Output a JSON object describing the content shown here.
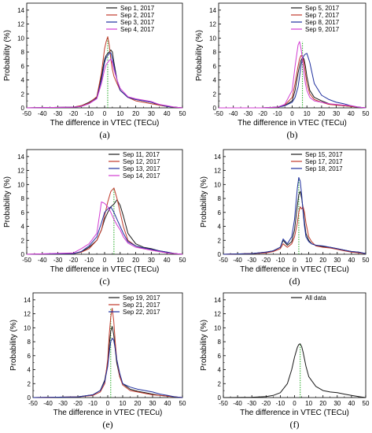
{
  "figure": {
    "colors": {
      "black": "#1a1a1a",
      "red": "#c0392b",
      "blue": "#1f2f9e",
      "magenta": "#d23cd2",
      "median_line": "#22aa22"
    }
  },
  "chart_data": [
    {
      "type": "line",
      "panel_label": "(a)",
      "xlabel": "The difference in VTEC (TECu)",
      "ylabel": "Probability (%)",
      "xlim": [
        -50,
        50
      ],
      "ylim": [
        0,
        15
      ],
      "xticks": [
        -50,
        -40,
        -30,
        -20,
        -10,
        0,
        10,
        20,
        30,
        40,
        50
      ],
      "yticks": [
        0,
        2,
        4,
        6,
        8,
        10,
        12,
        14
      ],
      "grid": false,
      "legend_position": "top-right",
      "median_line_x": 2,
      "x": [
        -50,
        -20,
        -15,
        -10,
        -5,
        -2,
        0,
        1,
        2,
        3,
        4,
        5,
        6,
        8,
        10,
        15,
        20,
        25,
        30,
        35,
        40,
        45,
        50
      ],
      "series": [
        {
          "name": "Sep 1, 2017",
          "color_key": "black",
          "values": [
            0,
            0.1,
            0.3,
            0.8,
            1.5,
            4.5,
            7.0,
            7.5,
            7.8,
            8.0,
            8.3,
            8.0,
            6.5,
            4.0,
            2.5,
            1.5,
            1.2,
            1.0,
            0.8,
            0.4,
            0.2,
            0.1,
            0
          ]
        },
        {
          "name": "Sep 2, 2017",
          "color_key": "red",
          "values": [
            0,
            0.1,
            0.3,
            0.7,
            1.6,
            5.0,
            8.5,
            9.5,
            10.2,
            9.0,
            7.0,
            5.5,
            4.5,
            3.5,
            2.5,
            1.5,
            1.0,
            0.8,
            0.6,
            0.4,
            0.2,
            0.1,
            0
          ]
        },
        {
          "name": "Sep 3, 2017",
          "color_key": "blue",
          "values": [
            0,
            0.1,
            0.2,
            0.6,
            1.4,
            4.0,
            6.5,
            7.2,
            7.5,
            7.8,
            7.9,
            7.0,
            6.0,
            4.0,
            2.5,
            1.5,
            1.2,
            1.0,
            0.8,
            0.5,
            0.2,
            0.1,
            0
          ]
        },
        {
          "name": "Sep 4, 2017",
          "color_key": "magenta",
          "values": [
            0,
            0.1,
            0.2,
            0.6,
            1.3,
            3.5,
            5.5,
            6.2,
            6.5,
            6.8,
            7.0,
            6.5,
            5.5,
            4.0,
            2.8,
            1.6,
            1.3,
            1.1,
            0.9,
            0.5,
            0.3,
            0.1,
            0
          ]
        }
      ]
    },
    {
      "type": "line",
      "panel_label": "(b)",
      "xlabel": "The difference in VTEC (TECu)",
      "ylabel": "Probability (%)",
      "xlim": [
        -50,
        50
      ],
      "ylim": [
        0,
        15
      ],
      "xticks": [
        -50,
        -40,
        -30,
        -20,
        -10,
        0,
        10,
        20,
        30,
        40,
        50
      ],
      "yticks": [
        0,
        2,
        4,
        6,
        8,
        10,
        12,
        14
      ],
      "grid": false,
      "legend_position": "top-right",
      "median_line_x": 7,
      "x": [
        -50,
        -20,
        -10,
        -5,
        0,
        2,
        4,
        5,
        6,
        7,
        8,
        9,
        10,
        12,
        15,
        20,
        25,
        30,
        35,
        40,
        45,
        50
      ],
      "series": [
        {
          "name": "Sep 5, 2017",
          "color_key": "black",
          "values": [
            0,
            0,
            0.1,
            0.3,
            1.0,
            2.5,
            5.0,
            6.0,
            6.8,
            7.2,
            7.0,
            6.0,
            4.5,
            2.5,
            1.5,
            1.0,
            0.6,
            0.4,
            0.3,
            0.2,
            0.1,
            0
          ]
        },
        {
          "name": "Sep 7, 2017",
          "color_key": "red",
          "values": [
            0,
            0,
            0.1,
            0.4,
            1.5,
            3.5,
            6.0,
            7.0,
            7.5,
            7.3,
            6.5,
            5.0,
            3.5,
            2.0,
            1.2,
            0.8,
            0.5,
            0.4,
            0.3,
            0.2,
            0.1,
            0
          ]
        },
        {
          "name": "Sep 8, 2017",
          "color_key": "blue",
          "values": [
            0,
            0,
            0.1,
            0.3,
            0.8,
            1.5,
            3.0,
            4.5,
            6.0,
            7.0,
            7.5,
            7.7,
            7.8,
            6.5,
            3.5,
            1.8,
            1.2,
            0.8,
            0.6,
            0.3,
            0.1,
            0
          ]
        },
        {
          "name": "Sep 9, 2017",
          "color_key": "magenta",
          "values": [
            0,
            0,
            0.1,
            0.5,
            2.5,
            6.0,
            9.0,
            9.5,
            8.5,
            7.0,
            5.0,
            3.5,
            2.5,
            1.5,
            1.0,
            0.8,
            0.6,
            0.5,
            0.4,
            0.3,
            0.1,
            0
          ]
        }
      ]
    },
    {
      "type": "line",
      "panel_label": "(c)",
      "xlabel": "The difference in VTEC (TECu)",
      "ylabel": "Probability (%)",
      "xlim": [
        -50,
        50
      ],
      "ylim": [
        0,
        15
      ],
      "xticks": [
        -50,
        -40,
        -30,
        -20,
        -10,
        0,
        10,
        20,
        30,
        40,
        50
      ],
      "yticks": [
        0,
        2,
        4,
        6,
        8,
        10,
        12,
        14
      ],
      "grid": false,
      "legend_position": "top-right",
      "median_line_x": 6,
      "x": [
        -50,
        -20,
        -15,
        -10,
        -5,
        -2,
        0,
        2,
        4,
        6,
        8,
        10,
        12,
        15,
        20,
        25,
        30,
        35,
        40,
        45,
        50
      ],
      "series": [
        {
          "name": "Sep 11, 2017",
          "color_key": "black",
          "values": [
            0,
            0.1,
            0.3,
            1.0,
            2.0,
            3.5,
            5.0,
            6.0,
            6.8,
            7.2,
            7.8,
            7.0,
            5.5,
            3.0,
            1.5,
            1.0,
            0.8,
            0.5,
            0.3,
            0.1,
            0
          ]
        },
        {
          "name": "Sep 12, 2017",
          "color_key": "red",
          "values": [
            0,
            0.1,
            0.3,
            0.8,
            2.0,
            3.5,
            5.5,
            7.5,
            9.0,
            9.5,
            8.0,
            6.0,
            4.0,
            2.0,
            1.2,
            0.8,
            0.6,
            0.4,
            0.2,
            0.1,
            0
          ]
        },
        {
          "name": "Sep 13, 2017",
          "color_key": "blue",
          "values": [
            0,
            0.1,
            0.4,
            1.2,
            2.5,
            4.5,
            6.0,
            6.5,
            6.8,
            6.0,
            5.0,
            4.0,
            3.0,
            1.8,
            1.2,
            0.9,
            0.7,
            0.5,
            0.3,
            0.1,
            0
          ]
        },
        {
          "name": "Sep 14, 2017",
          "color_key": "magenta",
          "values": [
            0,
            0.2,
            0.8,
            1.5,
            3.0,
            7.5,
            7.3,
            6.8,
            6.0,
            5.0,
            4.2,
            3.5,
            2.5,
            1.6,
            1.0,
            0.8,
            0.6,
            0.4,
            0.2,
            0.1,
            0
          ]
        }
      ]
    },
    {
      "type": "line",
      "panel_label": "(d)",
      "xlabel": "The difference in VTEC (TECu)",
      "ylabel": "Probability (%)",
      "xlim": [
        -50,
        50
      ],
      "ylim": [
        0,
        15
      ],
      "xticks": [
        -50,
        -40,
        -30,
        -20,
        -10,
        0,
        10,
        20,
        30,
        40,
        50
      ],
      "yticks": [
        0,
        2,
        4,
        6,
        8,
        10,
        12,
        14
      ],
      "grid": false,
      "legend_position": "top-right",
      "median_line_x": 3,
      "x": [
        -50,
        -30,
        -20,
        -15,
        -10,
        -8,
        -5,
        -2,
        0,
        2,
        3,
        4,
        5,
        6,
        7,
        8,
        10,
        12,
        15,
        20,
        25,
        30,
        35,
        40,
        45,
        50
      ],
      "series": [
        {
          "name": "Sep 15, 2017",
          "color_key": "black",
          "values": [
            0,
            0.1,
            0.3,
            0.5,
            1.0,
            2.0,
            1.3,
            1.8,
            3.5,
            7.0,
            8.5,
            9.0,
            8.0,
            6.5,
            4.5,
            3.0,
            2.0,
            1.5,
            1.3,
            1.1,
            1.0,
            0.8,
            0.6,
            0.4,
            0.3,
            0.1
          ]
        },
        {
          "name": "Sep 17, 2017",
          "color_key": "red",
          "values": [
            0,
            0.1,
            0.2,
            0.4,
            0.8,
            1.5,
            1.0,
            1.5,
            2.5,
            4.5,
            6.0,
            6.8,
            6.5,
            6.8,
            6.0,
            4.5,
            2.5,
            1.8,
            1.2,
            1.0,
            0.9,
            0.7,
            0.5,
            0.3,
            0.2,
            0.1
          ]
        },
        {
          "name": "Sep 18, 2017",
          "color_key": "blue",
          "values": [
            0,
            0.1,
            0.3,
            0.5,
            1.0,
            2.2,
            1.5,
            2.5,
            5.0,
            9.5,
            11.0,
            10.5,
            8.5,
            6.0,
            4.0,
            2.5,
            1.8,
            1.5,
            1.3,
            1.2,
            1.0,
            0.8,
            0.6,
            0.4,
            0.3,
            0.1
          ]
        }
      ]
    },
    {
      "type": "line",
      "panel_label": "(e)",
      "xlabel": "The difference in VTEC (TECu)",
      "ylabel": "Probability (%)",
      "xlim": [
        -50,
        50
      ],
      "ylim": [
        0,
        15
      ],
      "xticks": [
        -50,
        -40,
        -30,
        -20,
        -10,
        0,
        10,
        20,
        30,
        40,
        50
      ],
      "yticks": [
        0,
        2,
        4,
        6,
        8,
        10,
        12,
        14
      ],
      "grid": false,
      "legend_position": "top-right",
      "median_line_x": 2,
      "x": [
        -50,
        -20,
        -10,
        -5,
        -2,
        0,
        1,
        2,
        3,
        4,
        5,
        6,
        8,
        10,
        15,
        20,
        25,
        30,
        35,
        40,
        45,
        50
      ],
      "series": [
        {
          "name": "Sep 19, 2017",
          "color_key": "black",
          "values": [
            0,
            0.1,
            0.4,
            1.0,
            2.5,
            5.0,
            7.5,
            9.5,
            10.2,
            9.0,
            7.0,
            5.0,
            3.0,
            2.0,
            1.2,
            0.9,
            0.7,
            0.5,
            0.3,
            0.2,
            0.1,
            0
          ]
        },
        {
          "name": "Sep 21, 2017",
          "color_key": "red",
          "values": [
            0,
            0.1,
            0.3,
            0.8,
            2.0,
            5.5,
            9.0,
            11.5,
            12.8,
            11.0,
            8.0,
            5.5,
            3.0,
            1.8,
            1.0,
            0.8,
            0.6,
            0.4,
            0.3,
            0.2,
            0.1,
            0
          ]
        },
        {
          "name": "Sep 22, 2017",
          "color_key": "blue",
          "values": [
            0,
            0.1,
            0.4,
            1.0,
            2.3,
            4.5,
            6.5,
            8.0,
            8.5,
            8.2,
            7.0,
            5.5,
            3.5,
            2.0,
            1.5,
            1.2,
            1.0,
            0.8,
            0.5,
            0.3,
            0.1,
            0
          ]
        }
      ]
    },
    {
      "type": "line",
      "panel_label": "(f)",
      "xlabel": "The difference in VTEC (TECu)",
      "ylabel": "Probability (%)",
      "xlim": [
        -50,
        50
      ],
      "ylim": [
        0,
        15
      ],
      "xticks": [
        -50,
        -40,
        -30,
        -20,
        -10,
        0,
        10,
        20,
        30,
        40,
        50
      ],
      "yticks": [
        0,
        2,
        4,
        6,
        8,
        10,
        12,
        14
      ],
      "grid": false,
      "legend_position": "top-right",
      "median_line_x": 4,
      "x": [
        -50,
        -30,
        -20,
        -15,
        -10,
        -5,
        -2,
        0,
        2,
        3,
        4,
        5,
        6,
        8,
        10,
        15,
        20,
        25,
        30,
        35,
        40,
        45,
        50
      ],
      "series": [
        {
          "name": "All data",
          "color_key": "black",
          "values": [
            0,
            0.05,
            0.15,
            0.3,
            0.7,
            2.0,
            4.0,
            5.8,
            7.2,
            7.6,
            7.7,
            7.3,
            6.5,
            4.5,
            3.0,
            1.6,
            1.0,
            0.8,
            0.7,
            0.5,
            0.3,
            0.15,
            0
          ]
        }
      ]
    }
  ]
}
